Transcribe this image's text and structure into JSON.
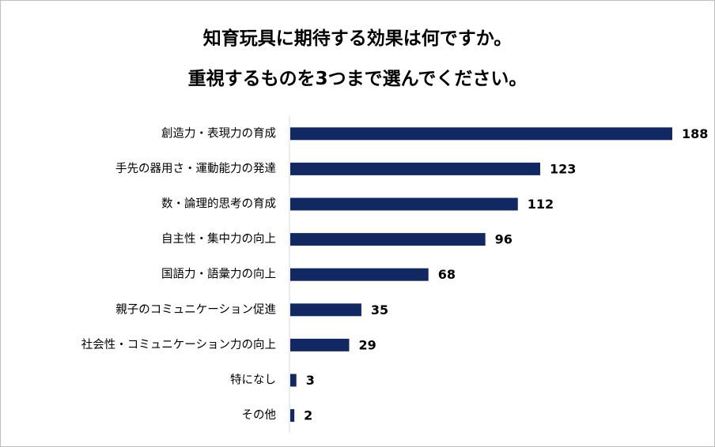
{
  "chart_data": {
    "type": "bar",
    "orientation": "horizontal",
    "title_lines": [
      "知育玩具に期待する効果は何ですか。",
      "重視するものを3つまで選んでください。"
    ],
    "categories": [
      "創造力・表現力の育成",
      "手先の器用さ・運動能力の発達",
      "数・論理的思考の育成",
      "自主性・集中力の向上",
      "国語力・語彙力の向上",
      "親子のコミュニケーション促進",
      "社会性・コミュニケーション力の向上",
      "特になし",
      "その他"
    ],
    "values": [
      188,
      123,
      112,
      96,
      68,
      35,
      29,
      3,
      2
    ],
    "xlim": [
      0,
      188
    ],
    "bar_color": "#112862",
    "grid": false,
    "legend": "none"
  }
}
